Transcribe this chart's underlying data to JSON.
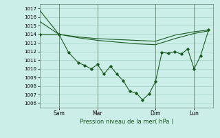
{
  "bg_color": "#cceee8",
  "grid_color": "#99ccbb",
  "line_color": "#1a5c20",
  "marker_color": "#1a5c20",
  "xlabel": "Pression niveau de la mer( hPa )",
  "ylim": [
    1005.5,
    1017.5
  ],
  "yticks": [
    1006,
    1007,
    1008,
    1009,
    1010,
    1011,
    1012,
    1013,
    1014,
    1015,
    1016,
    1017
  ],
  "xtick_labels": [
    "Sam",
    "Mar",
    "Dim",
    "Lun"
  ],
  "xtick_positions": [
    24,
    72,
    144,
    192
  ],
  "xlim": [
    0,
    216
  ],
  "line1_x": [
    0,
    24,
    48,
    72,
    96,
    120,
    144,
    168,
    192,
    210
  ],
  "line1_y": [
    1016.8,
    1014.0,
    1013.7,
    1013.5,
    1013.4,
    1013.3,
    1013.2,
    1013.9,
    1014.3,
    1014.5
  ],
  "line2_x": [
    0,
    24,
    48,
    72,
    96,
    120,
    144,
    168,
    192,
    210
  ],
  "line2_y": [
    1015.5,
    1014.0,
    1013.6,
    1013.3,
    1013.1,
    1012.9,
    1012.8,
    1013.5,
    1014.1,
    1014.4
  ],
  "line3_x": [
    0,
    24,
    36,
    48,
    56,
    64,
    72,
    80,
    88,
    96,
    104,
    112,
    120,
    128,
    136,
    144,
    152,
    160,
    168,
    176,
    184,
    192,
    200,
    210
  ],
  "line3_y": [
    1014.0,
    1014.0,
    1011.9,
    1010.7,
    1010.4,
    1010.0,
    1010.5,
    1009.4,
    1010.3,
    1009.4,
    1008.6,
    1007.4,
    1007.2,
    1006.4,
    1007.1,
    1008.5,
    1011.9,
    1011.8,
    1012.0,
    1011.7,
    1012.3,
    1010.0,
    1011.5,
    1014.5
  ]
}
